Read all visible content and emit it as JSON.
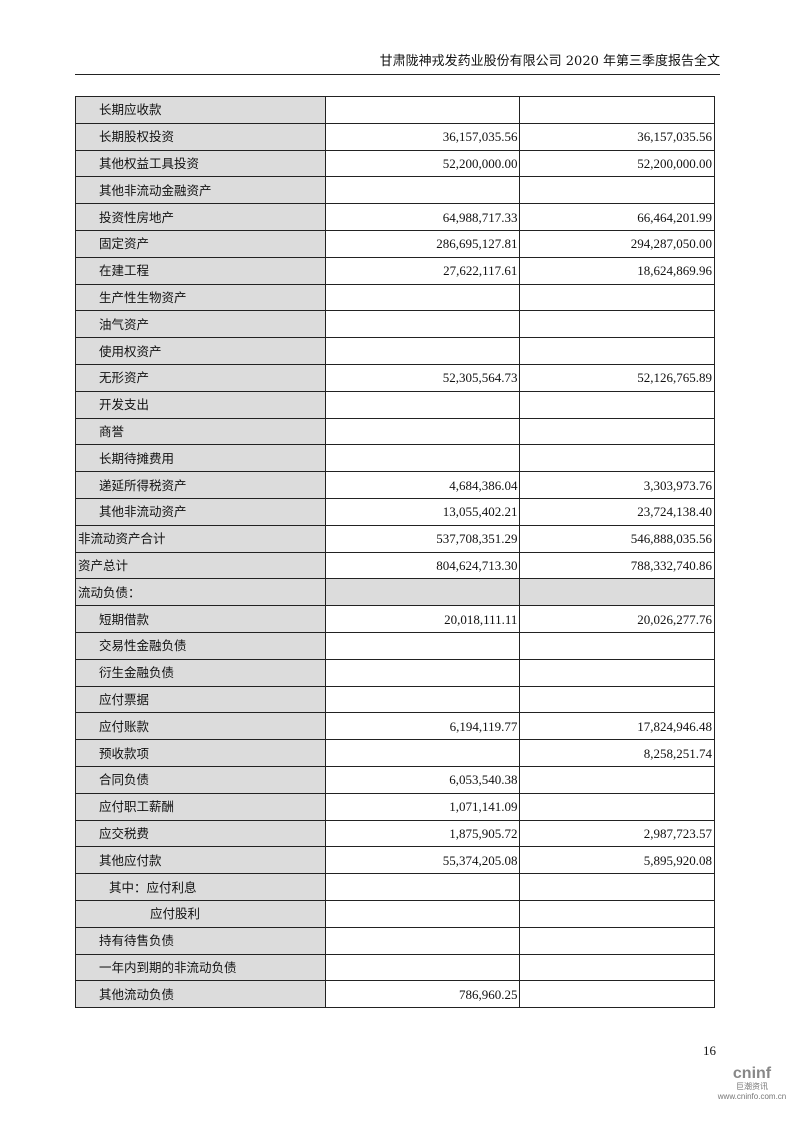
{
  "header": {
    "title": "甘肃陇神戎发药业股份有限公司 2020 年第三季度报告全文"
  },
  "table": {
    "rows": [
      {
        "label": "长期应收款",
        "indent": 1,
        "col1": "",
        "col2": ""
      },
      {
        "label": "长期股权投资",
        "indent": 1,
        "col1": "36,157,035.56",
        "col2": "36,157,035.56"
      },
      {
        "label": "其他权益工具投资",
        "indent": 1,
        "col1": "52,200,000.00",
        "col2": "52,200,000.00"
      },
      {
        "label": "其他非流动金融资产",
        "indent": 1,
        "col1": "",
        "col2": ""
      },
      {
        "label": "投资性房地产",
        "indent": 1,
        "col1": "64,988,717.33",
        "col2": "66,464,201.99"
      },
      {
        "label": "固定资产",
        "indent": 1,
        "col1": "286,695,127.81",
        "col2": "294,287,050.00"
      },
      {
        "label": "在建工程",
        "indent": 1,
        "col1": "27,622,117.61",
        "col2": "18,624,869.96"
      },
      {
        "label": "生产性生物资产",
        "indent": 1,
        "col1": "",
        "col2": ""
      },
      {
        "label": "油气资产",
        "indent": 1,
        "col1": "",
        "col2": ""
      },
      {
        "label": "使用权资产",
        "indent": 1,
        "col1": "",
        "col2": ""
      },
      {
        "label": "无形资产",
        "indent": 1,
        "col1": "52,305,564.73",
        "col2": "52,126,765.89"
      },
      {
        "label": "开发支出",
        "indent": 1,
        "col1": "",
        "col2": ""
      },
      {
        "label": "商誉",
        "indent": 1,
        "col1": "",
        "col2": ""
      },
      {
        "label": "长期待摊费用",
        "indent": 1,
        "col1": "",
        "col2": ""
      },
      {
        "label": "递延所得税资产",
        "indent": 1,
        "col1": "4,684,386.04",
        "col2": "3,303,973.76"
      },
      {
        "label": "其他非流动资产",
        "indent": 1,
        "col1": "13,055,402.21",
        "col2": "23,724,138.40"
      },
      {
        "label": "非流动资产合计",
        "indent": 0,
        "col1": "537,708,351.29",
        "col2": "546,888,035.56"
      },
      {
        "label": "资产总计",
        "indent": 0,
        "col1": "804,624,713.30",
        "col2": "788,332,740.86"
      },
      {
        "label": "流动负债：",
        "indent": 0,
        "col1": "",
        "col2": "",
        "section": true
      },
      {
        "label": "短期借款",
        "indent": 1,
        "col1": "20,018,111.11",
        "col2": "20,026,277.76"
      },
      {
        "label": "交易性金融负债",
        "indent": 1,
        "col1": "",
        "col2": ""
      },
      {
        "label": "衍生金融负债",
        "indent": 1,
        "col1": "",
        "col2": ""
      },
      {
        "label": "应付票据",
        "indent": 1,
        "col1": "",
        "col2": ""
      },
      {
        "label": "应付账款",
        "indent": 1,
        "col1": "6,194,119.77",
        "col2": "17,824,946.48"
      },
      {
        "label": "预收款项",
        "indent": 1,
        "col1": "",
        "col2": "8,258,251.74"
      },
      {
        "label": "合同负债",
        "indent": 1,
        "col1": "6,053,540.38",
        "col2": ""
      },
      {
        "label": "应付职工薪酬",
        "indent": 1,
        "col1": "1,071,141.09",
        "col2": ""
      },
      {
        "label": "应交税费",
        "indent": 1,
        "col1": "1,875,905.72",
        "col2": "2,987,723.57"
      },
      {
        "label": "其他应付款",
        "indent": 1,
        "col1": "55,374,205.08",
        "col2": "5,895,920.08"
      },
      {
        "label": "其中：应付利息",
        "indent": 2,
        "col1": "",
        "col2": ""
      },
      {
        "label": "应付股利",
        "indent": 3,
        "col1": "",
        "col2": ""
      },
      {
        "label": "持有待售负债",
        "indent": 1,
        "col1": "",
        "col2": ""
      },
      {
        "label": "一年内到期的非流动负债",
        "indent": 1,
        "col1": "",
        "col2": ""
      },
      {
        "label": "其他流动负债",
        "indent": 1,
        "col1": "786,960.25",
        "col2": ""
      }
    ]
  },
  "footer": {
    "page_number": "16"
  },
  "logo": {
    "brand": "cninf",
    "name_cn": "巨潮资讯",
    "url": "www.cninfo.com.cn"
  }
}
